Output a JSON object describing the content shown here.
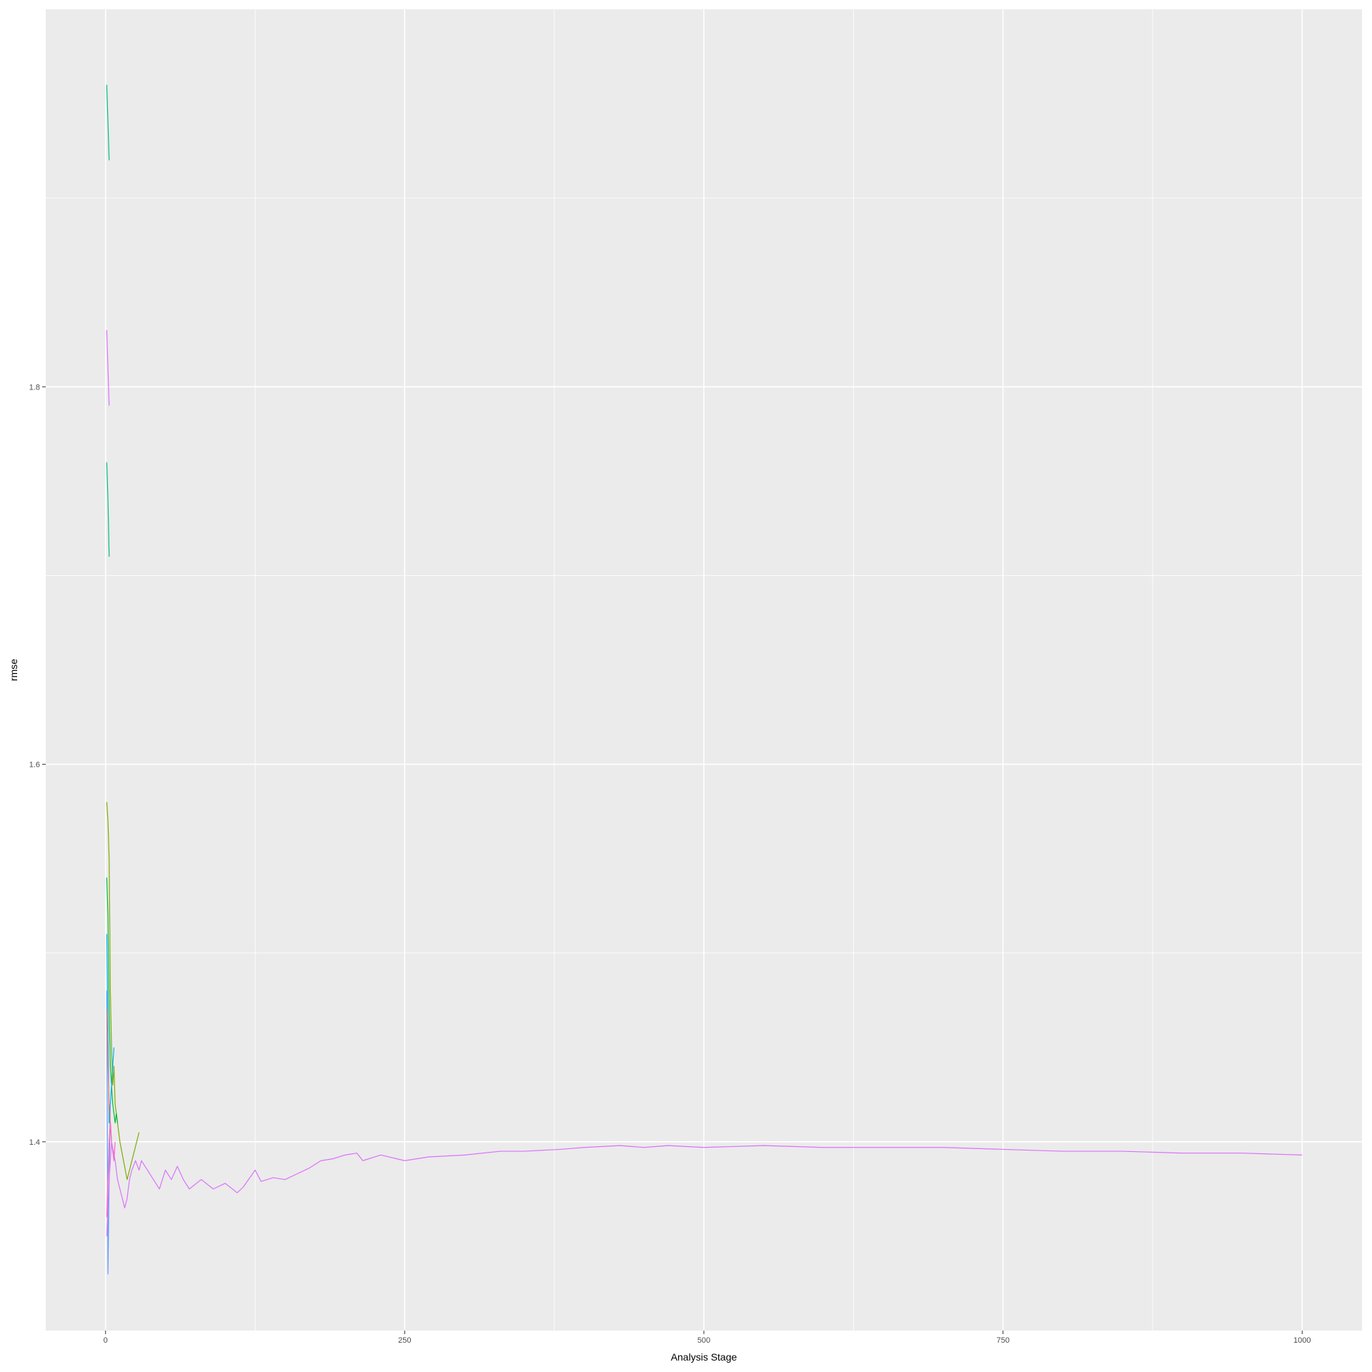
{
  "chart_data": {
    "type": "line",
    "title": "",
    "xlabel": "Analysis Stage",
    "ylabel": "rmse",
    "xlim": [
      -50,
      1050
    ],
    "ylim": [
      1.3,
      2.0
    ],
    "x_ticks": [
      0,
      250,
      500,
      750,
      1000
    ],
    "x_tick_labels": [
      "0",
      "250",
      "500",
      "750",
      "1000"
    ],
    "y_ticks": [
      1.4,
      1.6,
      1.8
    ],
    "y_tick_labels": [
      "1.4",
      "1.6",
      "1.8"
    ],
    "grid": true,
    "legend": "none",
    "panel_background": "#EBEBEB",
    "grid_color": "#FFFFFF",
    "series": [
      {
        "color": "#7CAE00",
        "x": [
          1,
          2,
          3,
          4,
          5,
          6,
          7,
          8,
          10,
          12,
          15,
          18,
          20,
          22,
          24,
          26,
          28
        ],
        "y": [
          1.58,
          1.57,
          1.55,
          1.48,
          1.45,
          1.43,
          1.44,
          1.42,
          1.41,
          1.4,
          1.39,
          1.38,
          1.385,
          1.39,
          1.395,
          1.4,
          1.405
        ]
      },
      {
        "color": "#00BF7D",
        "x": [
          1,
          2,
          3
        ],
        "y": [
          1.96,
          1.94,
          1.92
        ]
      },
      {
        "color": "#00BF7D",
        "x": [
          1,
          2,
          3
        ],
        "y": [
          1.76,
          1.74,
          1.71
        ]
      },
      {
        "color": "#00BA38",
        "x": [
          1,
          2,
          3,
          4,
          5,
          6,
          7,
          8,
          9,
          10
        ],
        "y": [
          1.54,
          1.52,
          1.47,
          1.44,
          1.43,
          1.42,
          1.415,
          1.41,
          1.415,
          1.41
        ]
      },
      {
        "color": "#00B0F6",
        "x": [
          1,
          2,
          3,
          4,
          5,
          6,
          7
        ],
        "y": [
          1.51,
          1.46,
          1.41,
          1.42,
          1.43,
          1.44,
          1.45
        ]
      },
      {
        "color": "#619CFF",
        "x": [
          1,
          2,
          3,
          4
        ],
        "y": [
          1.48,
          1.33,
          1.38,
          1.42
        ]
      },
      {
        "color": "#F8766D",
        "x": [
          1,
          2,
          3,
          4,
          5
        ],
        "y": [
          1.47,
          1.44,
          1.42,
          1.41,
          1.4
        ]
      },
      {
        "color": "#FF61C3",
        "x": [
          1,
          2,
          3,
          4,
          5,
          6,
          7,
          8
        ],
        "y": [
          1.36,
          1.38,
          1.4,
          1.41,
          1.4,
          1.395,
          1.39,
          1.4
        ]
      },
      {
        "color": "#DB72FB",
        "x": [
          1,
          2,
          3
        ],
        "y": [
          1.83,
          1.81,
          1.79
        ]
      },
      {
        "color": "#DB72FB",
        "x": [
          1,
          3,
          5,
          8,
          10,
          12,
          14,
          16,
          18,
          20,
          22,
          25,
          28,
          30,
          35,
          40,
          45,
          50,
          55,
          60,
          65,
          70,
          80,
          90,
          100,
          110,
          115,
          125,
          130,
          140,
          150,
          160,
          170,
          180,
          190,
          200,
          210,
          215,
          230,
          250,
          270,
          300,
          330,
          350,
          380,
          400,
          430,
          450,
          470,
          500,
          550,
          600,
          650,
          700,
          750,
          800,
          850,
          900,
          950,
          1000
        ],
        "y": [
          1.35,
          1.38,
          1.4,
          1.39,
          1.38,
          1.375,
          1.37,
          1.365,
          1.37,
          1.38,
          1.385,
          1.39,
          1.385,
          1.39,
          1.385,
          1.38,
          1.375,
          1.385,
          1.38,
          1.387,
          1.38,
          1.375,
          1.38,
          1.375,
          1.378,
          1.373,
          1.376,
          1.385,
          1.379,
          1.381,
          1.38,
          1.383,
          1.386,
          1.39,
          1.391,
          1.393,
          1.394,
          1.39,
          1.393,
          1.39,
          1.392,
          1.393,
          1.395,
          1.395,
          1.396,
          1.397,
          1.398,
          1.397,
          1.398,
          1.397,
          1.398,
          1.397,
          1.397,
          1.397,
          1.396,
          1.395,
          1.395,
          1.394,
          1.394,
          1.393
        ]
      }
    ]
  }
}
